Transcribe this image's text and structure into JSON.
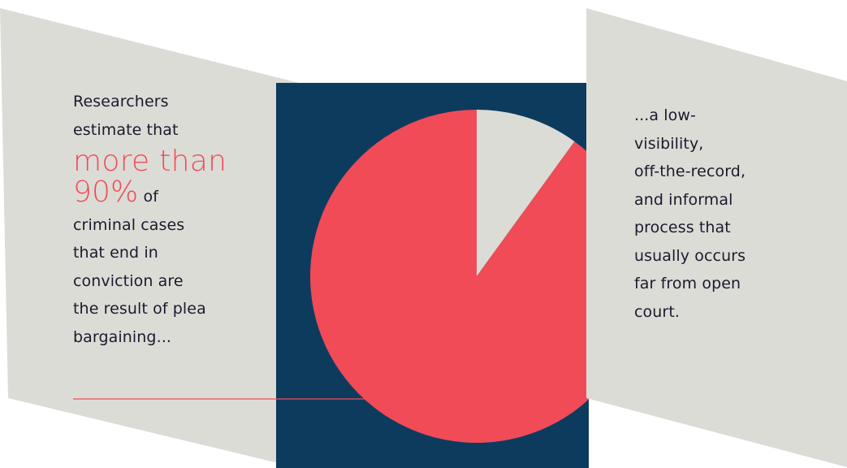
{
  "left_text": {
    "line1": "Researchers",
    "line2": "estimate that",
    "highlight_line1": "more than",
    "highlight_line2": "90%",
    "after_highlight": "of",
    "line4": "criminal cases",
    "line5": "that end in",
    "line6": "conviction are",
    "line7": "the result of plea",
    "line8": "bargaining..."
  },
  "right_text": {
    "line1": "...a low-",
    "line2": "visibility,",
    "line3": "off-the-record,",
    "line4": "and informal",
    "line5": "process that",
    "line6": "usually occurs",
    "line7": "far from open",
    "line8": "court."
  },
  "colors": {
    "panel_gray": "#dcdcd6",
    "navy": "#0d3b5e",
    "accent_red": "#f04b57",
    "text_dark": "#1a1a2e"
  },
  "chart_data": {
    "type": "pie",
    "title": "",
    "slices": [
      {
        "label": "",
        "value": 90,
        "color": "#f04b57"
      },
      {
        "label": "",
        "value": 10,
        "color": "#dcdcd6"
      }
    ],
    "start_angle_deg": 0,
    "direction": "clockwise-from-top",
    "order": [
      1,
      0
    ]
  }
}
